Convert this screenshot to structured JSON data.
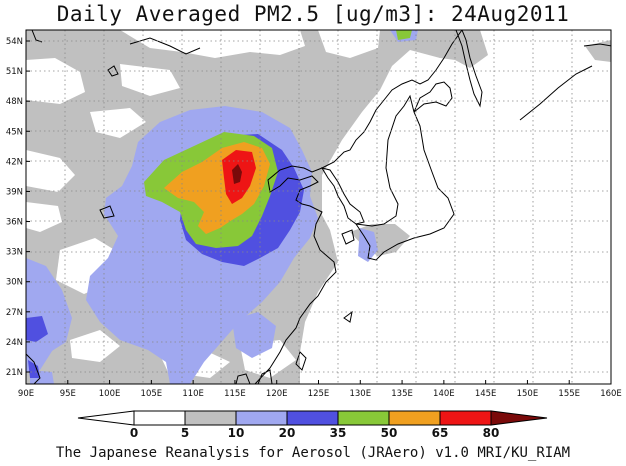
{
  "title": "Daily Averaged PM2.5 [ug/m3]: 24Aug2011",
  "footer": "The Japanese Reanalysis for Aerosol (JRAero) v1.0 MRI/KU_RIAM",
  "map": {
    "lon_labels": [
      "90E",
      "95E",
      "100E",
      "105E",
      "110E",
      "115E",
      "120E",
      "125E",
      "130E",
      "135E",
      "140E",
      "145E",
      "150E",
      "155E",
      "160E"
    ],
    "lat_labels": [
      "54N",
      "51N",
      "48N",
      "45N",
      "42N",
      "39N",
      "36N",
      "33N",
      "30N",
      "27N",
      "24N",
      "21N"
    ]
  },
  "colorbar": {
    "levels": [
      "0",
      "5",
      "10",
      "20",
      "35",
      "50",
      "65",
      "80"
    ],
    "colors": [
      "#ffffff",
      "#c0c0c0",
      "#a0a8f0",
      "#5050e0",
      "#88c838",
      "#f0a020",
      "#ee1515",
      "#7a0a0a"
    ],
    "below_color": "#ffffff"
  }
}
